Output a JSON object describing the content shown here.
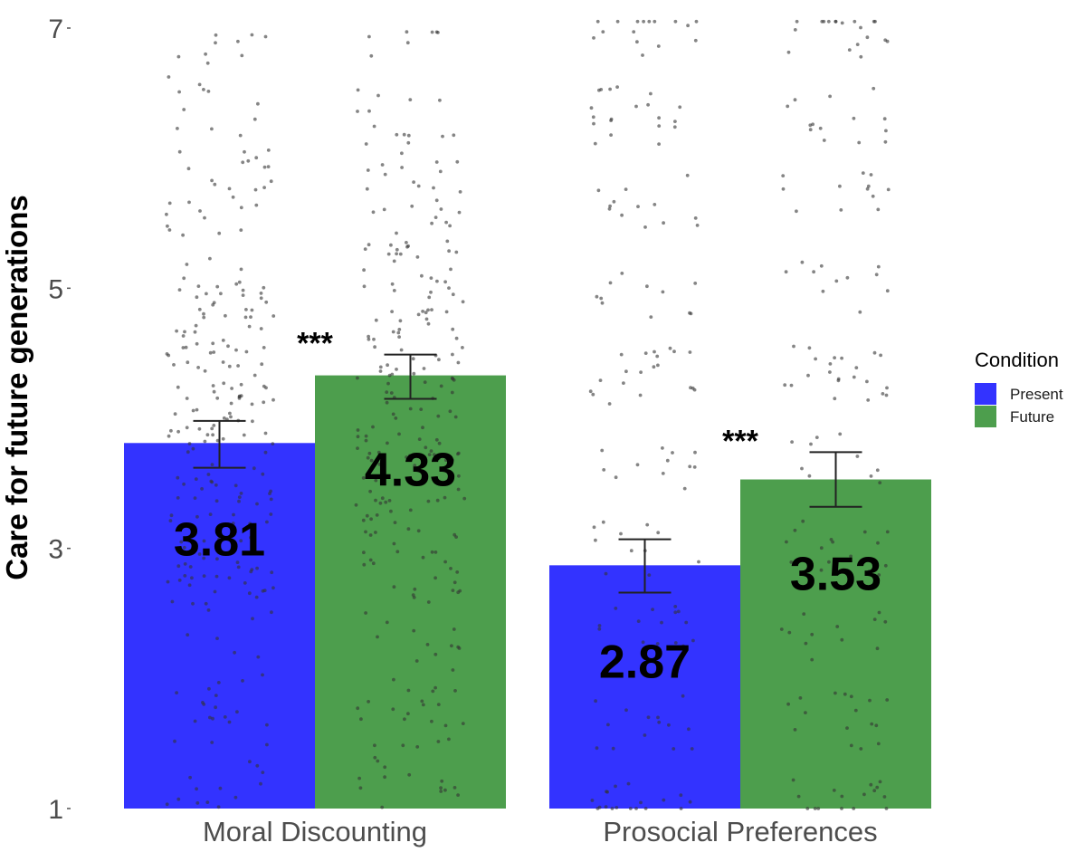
{
  "chart_data": {
    "type": "bar",
    "title": "",
    "xlabel": "",
    "ylabel": "Care for future generations",
    "ylim": [
      1,
      7
    ],
    "yticks": [
      1,
      3,
      5,
      7
    ],
    "grid": false,
    "categories": [
      "Moral Discounting",
      "Prosocial Preferences"
    ],
    "series": [
      {
        "name": "Present",
        "color": "#3333ff",
        "values": [
          3.81,
          2.87
        ],
        "value_labels": [
          "3.81",
          "2.87"
        ],
        "error_low": [
          3.62,
          2.66
        ],
        "error_high": [
          3.98,
          3.07
        ]
      },
      {
        "name": "Future",
        "color": "#4d9e4d",
        "values": [
          4.33,
          3.53
        ],
        "value_labels": [
          "4.33",
          "3.53"
        ],
        "error_low": [
          4.15,
          3.32
        ],
        "error_high": [
          4.49,
          3.74
        ]
      }
    ],
    "significance": [
      "***",
      "***"
    ],
    "legend": {
      "title": "Condition",
      "position": "right",
      "entries": [
        {
          "label": "Present",
          "color": "#3333ff"
        },
        {
          "label": "Future",
          "color": "#4d9e4d"
        }
      ]
    },
    "jitter_points": {
      "description": "Individual participant responses overlaid as jittered gray points",
      "color": "#555555",
      "approx_count_per_bar": [
        260,
        260,
        150,
        150
      ],
      "discrete_levels_prosocial": [
        1,
        1.67,
        2.33,
        3,
        3.67,
        4.33,
        5,
        5.67,
        6.33,
        7
      ]
    }
  }
}
